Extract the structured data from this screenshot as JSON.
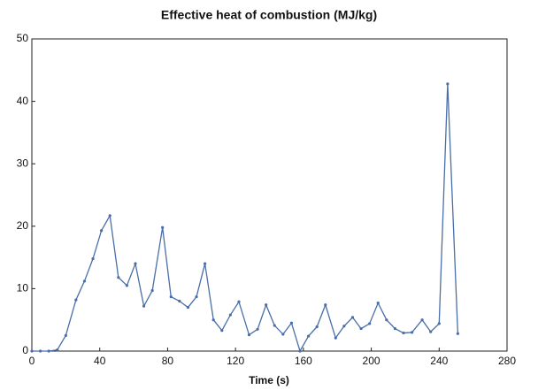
{
  "chart_data": {
    "type": "line",
    "title": "Effective heat of combustion (MJ/kg)",
    "x_label": "Time (s)",
    "x": [
      0,
      5,
      10,
      15,
      20,
      26,
      31,
      36,
      41,
      46,
      51,
      56,
      61,
      66,
      71,
      77,
      82,
      87,
      92,
      97,
      102,
      107,
      112,
      117,
      122,
      128,
      133,
      138,
      143,
      148,
      153,
      158,
      163,
      168,
      173,
      179,
      184,
      189,
      194,
      199,
      204,
      209,
      214,
      219,
      224,
      230,
      235,
      240,
      245,
      251
    ],
    "series": [
      {
        "color": "#4a6ea8",
        "values": [
          0,
          0,
          0,
          0.2,
          2.5,
          8.2,
          11.2,
          14.8,
          19.3,
          21.7,
          11.8,
          10.5,
          14,
          7.2,
          9.7,
          19.8,
          8.7,
          8,
          7,
          8.7,
          14,
          5,
          3.3,
          5.8,
          7.9,
          2.6,
          3.5,
          7.4,
          4.1,
          2.7,
          4.5,
          0,
          2.4,
          3.9,
          7.4,
          2.1,
          4,
          5.4,
          3.6,
          4.4,
          7.7,
          5,
          3.6,
          2.9,
          3,
          5,
          3.1,
          4.4,
          42.8,
          2.8
        ]
      }
    ],
    "xlim": [
      0,
      280
    ],
    "xticks": [
      0,
      40,
      80,
      120,
      160,
      200,
      240,
      280
    ],
    "ylim": [
      0,
      50
    ],
    "yticks": [
      0,
      10,
      20,
      30,
      40,
      50
    ],
    "grid": false
  }
}
